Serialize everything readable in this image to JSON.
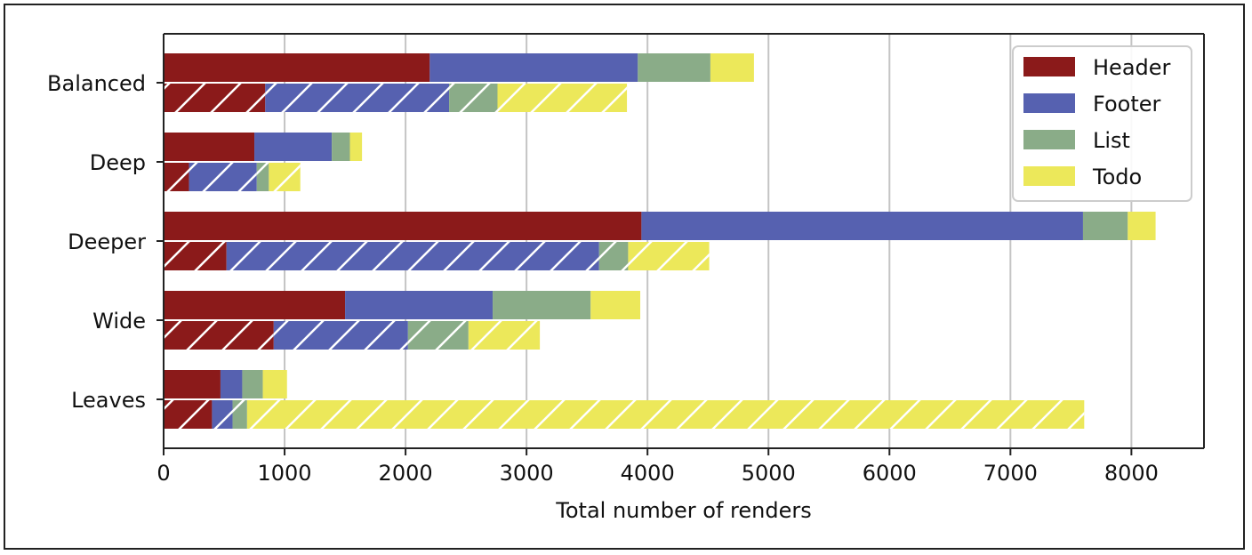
{
  "chart_data": {
    "type": "bar",
    "orientation": "horizontal",
    "stacked": true,
    "title": "",
    "xlabel": "Total number of renders",
    "ylabel": "",
    "xlim": [
      0,
      8600
    ],
    "xticks": [
      0,
      1000,
      2000,
      3000,
      4000,
      5000,
      6000,
      7000,
      8000
    ],
    "grid": "vertical",
    "legend_position": "top-right",
    "categories": [
      "Balanced",
      "Deep",
      "Deeper",
      "Wide",
      "Leaves"
    ],
    "series": [
      {
        "name": "Header",
        "color": "#8b1a1a"
      },
      {
        "name": "Footer",
        "color": "#5661b0"
      },
      {
        "name": "List",
        "color": "#8aac88"
      },
      {
        "name": "Todo",
        "color": "#ece85a"
      }
    ],
    "bars": [
      {
        "hatched": false,
        "values": [
          [
            2200,
            1720,
            600,
            360
          ],
          [
            750,
            640,
            150,
            100
          ],
          [
            3950,
            3650,
            370,
            230
          ],
          [
            1500,
            1220,
            810,
            410
          ],
          [
            470,
            180,
            170,
            200
          ]
        ]
      },
      {
        "hatched": true,
        "values": [
          [
            840,
            1520,
            400,
            1070
          ],
          [
            210,
            560,
            100,
            260
          ],
          [
            520,
            3080,
            240,
            670
          ],
          [
            910,
            1110,
            500,
            590
          ],
          [
            400,
            170,
            120,
            6920
          ]
        ]
      }
    ]
  }
}
